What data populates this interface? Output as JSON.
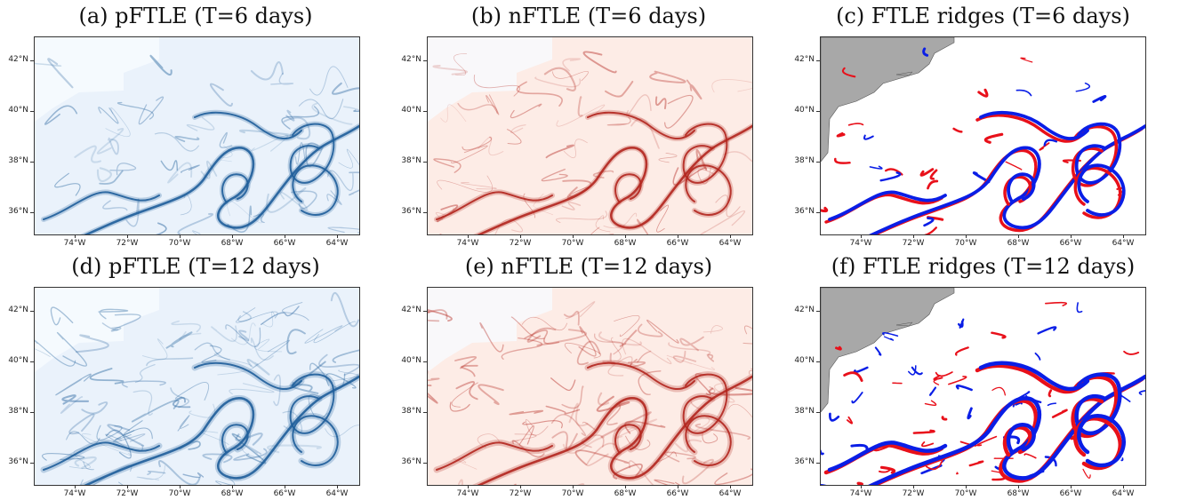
{
  "panels": [
    {
      "id": "a",
      "title": "(a) pFTLE (T=6 days)",
      "type": "pftle",
      "seed": 11
    },
    {
      "id": "b",
      "title": "(b) nFTLE (T=6 days)",
      "type": "nftle",
      "seed": 23
    },
    {
      "id": "c",
      "title": "(c) FTLE ridges (T=6 days)",
      "type": "ridges",
      "seed": 37
    },
    {
      "id": "d",
      "title": "(d) pFTLE (T=12 days)",
      "type": "pftle",
      "seed": 53
    },
    {
      "id": "e",
      "title": "(e) nFTLE (T=12 days)",
      "type": "nftle",
      "seed": 71
    },
    {
      "id": "f",
      "title": "(f) FTLE ridges (T=12 days)",
      "type": "ridges",
      "seed": 89
    }
  ],
  "axes": {
    "lat_labels": [
      "42°N",
      "40°N",
      "38°N",
      "36°N"
    ],
    "lon_labels": [
      "74°W",
      "72°W",
      "70°W",
      "68°W",
      "66°W",
      "64°W"
    ]
  },
  "colors": {
    "pftle": "#1f5e9a",
    "nftle": "#b3261e",
    "ridge_attracting": "#0a1ee6",
    "ridge_repelling": "#e8101a",
    "land": "#a8a8a8"
  }
}
